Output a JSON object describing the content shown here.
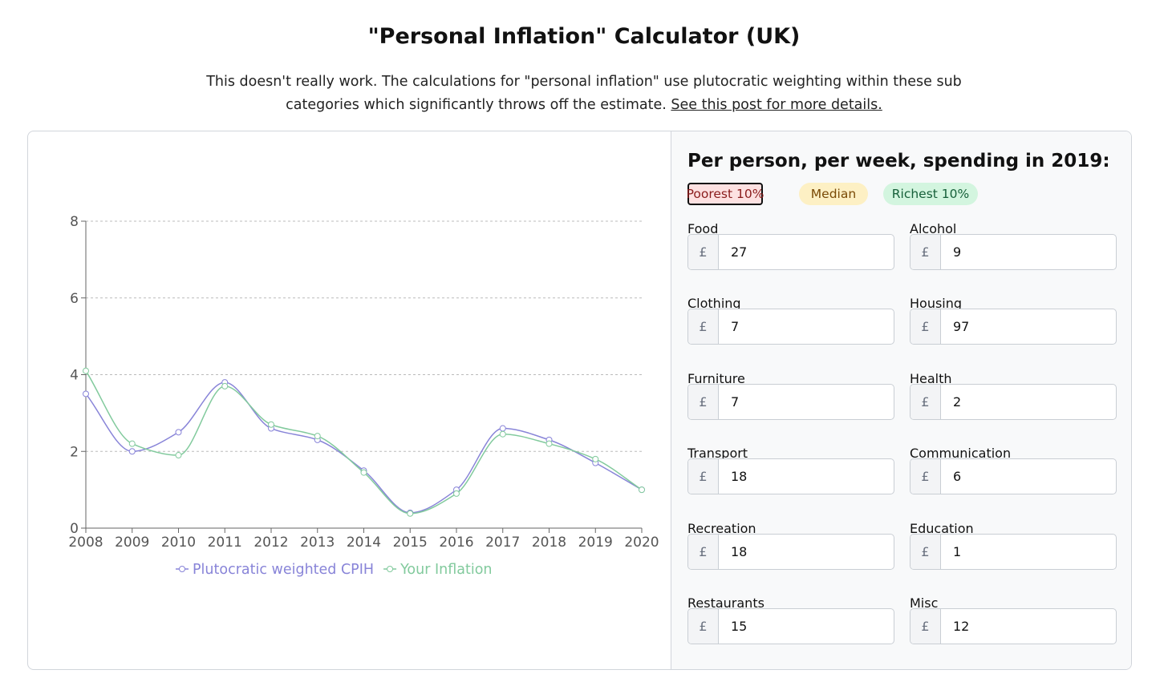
{
  "header": {
    "title": "\"Personal Inflation\" Calculator (UK)",
    "subtitle": "This doesn't really work. The calculations for \"personal inflation\" use plutocratic weighting within these sub categories which significantly throws off the estimate.",
    "link_text": "See this post for more details."
  },
  "colors": {
    "series_cpih": "#8884d8",
    "series_yours": "#82ca9d",
    "poorest_bg": "#fde1e1",
    "median_bg": "#fdf0c4",
    "richest_bg": "#d3f5df"
  },
  "chart_data": {
    "type": "line",
    "x": [
      2008,
      2009,
      2010,
      2011,
      2012,
      2013,
      2014,
      2015,
      2016,
      2017,
      2018,
      2019,
      2020
    ],
    "series": [
      {
        "name": "Plutocratic weighted CPIH",
        "values": [
          3.5,
          2.0,
          2.5,
          3.8,
          2.6,
          2.3,
          1.5,
          0.4,
          1.0,
          2.6,
          2.3,
          1.7,
          1.0
        ]
      },
      {
        "name": "Your Inflation",
        "values": [
          4.1,
          2.2,
          1.9,
          3.7,
          2.7,
          2.4,
          1.45,
          0.38,
          0.9,
          2.45,
          2.2,
          1.8,
          1.0
        ]
      }
    ],
    "ylim": [
      0,
      8
    ],
    "yticks": [
      0,
      2,
      4,
      6,
      8
    ],
    "grid": "horizontal-dashed",
    "legend": "bottom-center"
  },
  "panel": {
    "title": "Per person, per week, spending in 2019:",
    "presets": [
      "Poorest 10%",
      "Median",
      "Richest 10%"
    ],
    "selected_preset": "Poorest 10%",
    "currency": "£",
    "fields": [
      {
        "label": "Food",
        "value": "27"
      },
      {
        "label": "Alcohol",
        "value": "9"
      },
      {
        "label": "Clothing",
        "value": "7"
      },
      {
        "label": "Housing",
        "value": "97"
      },
      {
        "label": "Furniture",
        "value": "7"
      },
      {
        "label": "Health",
        "value": "2"
      },
      {
        "label": "Transport",
        "value": "18"
      },
      {
        "label": "Communication",
        "value": "6"
      },
      {
        "label": "Recreation",
        "value": "18"
      },
      {
        "label": "Education",
        "value": "1"
      },
      {
        "label": "Restaurants",
        "value": "15"
      },
      {
        "label": "Misc",
        "value": "12"
      }
    ]
  }
}
